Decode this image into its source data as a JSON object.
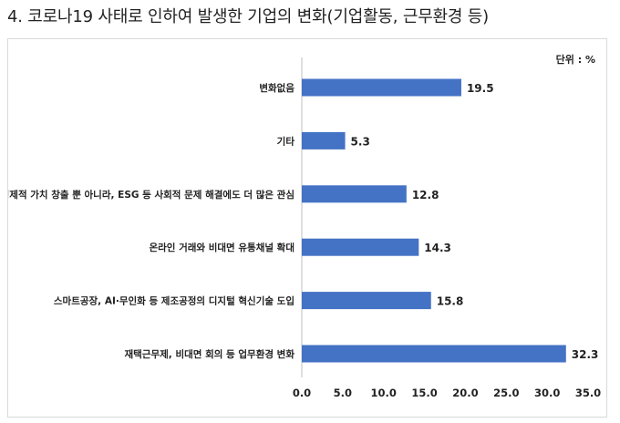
{
  "heading": "4. 코로나19 사태로 인하여 발생한 기업의 변화(기업활동, 근무환경 등)",
  "chart_data": {
    "type": "bar",
    "orientation": "horizontal",
    "unit_note": "단위 : %",
    "categories": [
      "변화없음",
      "기타",
      "경제적 가치 창출 뿐 아니라, ESG 등 사회적 문제 해결에도 더 많은 관심",
      "온라인 거래와 비대면 유통채널 확대",
      "스마트공장, AI·무인화 등 제조공정의 디지털 혁신기술 도입",
      "재택근무제, 비대면 회의 등 업무환경 변화"
    ],
    "values": [
      19.5,
      5.3,
      12.8,
      14.3,
      15.8,
      32.3
    ],
    "value_labels": [
      "19.5",
      "5.3",
      "12.8",
      "14.3",
      "15.8",
      "32.3"
    ],
    "xlim": [
      0,
      35
    ],
    "xticks": [
      "0.0",
      "5.0",
      "10.0",
      "15.0",
      "20.0",
      "25.0",
      "30.0",
      "35.0"
    ],
    "bar_color": "#4472c4",
    "grid": false,
    "legend": "none"
  }
}
